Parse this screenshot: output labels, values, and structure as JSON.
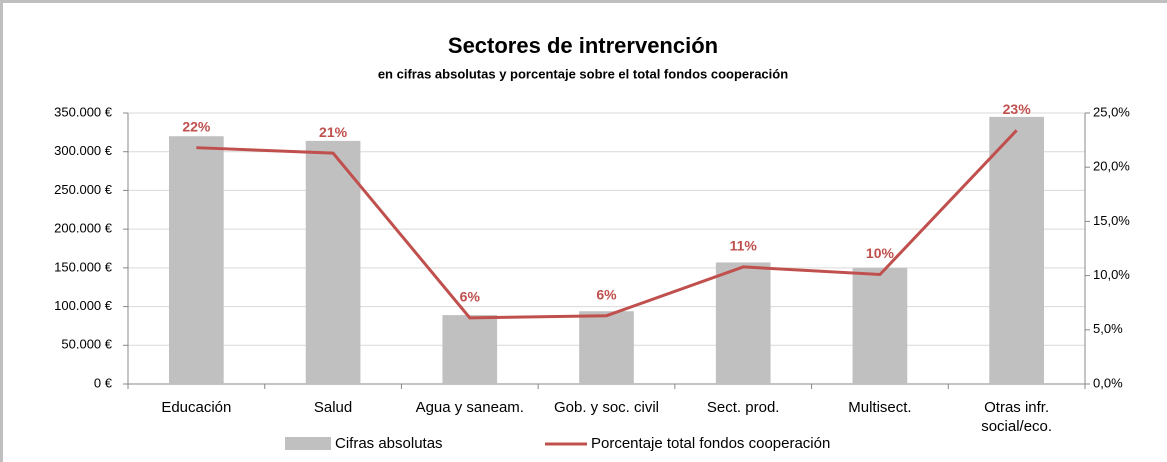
{
  "chart_data": {
    "type": "bar-line",
    "title": "Sectores de intrervención",
    "subtitle": "en cifras absolutas y porcentaje sobre el total fondos cooperación",
    "categories": [
      "Educación",
      "Salud",
      "Agua y saneam.",
      "Gob. y soc. civil",
      "Sect. prod.",
      "Multisect.",
      "Otras infr. social/eco."
    ],
    "series": [
      {
        "name": "Cifras absolutas",
        "type": "bar",
        "color": "#c0c0c0",
        "values": [
          320000,
          314000,
          89000,
          94000,
          157000,
          150000,
          345000
        ]
      },
      {
        "name": "Porcentaje total fondos cooperación",
        "type": "line",
        "axis": "y2",
        "color": "#c0504d",
        "values": [
          21.8,
          21.3,
          6.1,
          6.3,
          10.8,
          10.1,
          23.4
        ],
        "value_labels": [
          "22%",
          "21%",
          "6%",
          "6%",
          "11%",
          "10%",
          "23%"
        ]
      }
    ],
    "ylim": [
      0,
      350000
    ],
    "yticks": [
      {
        "value": 0,
        "label": "0 €"
      },
      {
        "value": 50000,
        "label": "50.000 €"
      },
      {
        "value": 100000,
        "label": "100.000 €"
      },
      {
        "value": 150000,
        "label": "150.000 €"
      },
      {
        "value": 200000,
        "label": "200.000 €"
      },
      {
        "value": 250000,
        "label": "250.000 €"
      },
      {
        "value": 300000,
        "label": "300.000 €"
      },
      {
        "value": 350000,
        "label": "350.000 €"
      }
    ],
    "y2lim": [
      0,
      25
    ],
    "y2ticks": [
      {
        "value": 0,
        "label": "0,0%"
      },
      {
        "value": 5,
        "label": "5,0%"
      },
      {
        "value": 10,
        "label": "10,0%"
      },
      {
        "value": 15,
        "label": "15,0%"
      },
      {
        "value": 20,
        "label": "20,0%"
      },
      {
        "value": 25,
        "label": "25,0%"
      }
    ],
    "grid": true,
    "legend": "bottom"
  }
}
